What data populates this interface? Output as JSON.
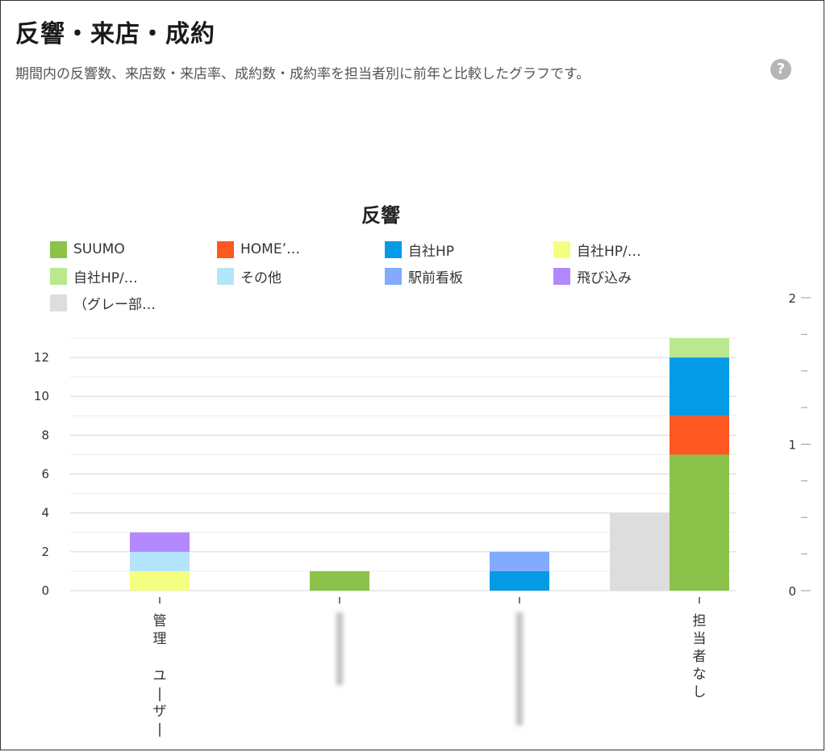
{
  "header": {
    "title": "反響・来店・成約",
    "description": "期間内の反響数、来店数・来店率、成約数・成約率を担当者別に前年と比較したグラフです。",
    "help_icon": "question-circle-icon"
  },
  "chart_data": {
    "type": "bar",
    "stacked": true,
    "title": "反響",
    "categories": [
      "管理　ユーザー",
      "",
      "",
      "担当者なし"
    ],
    "categories_blurred": [
      false,
      true,
      true,
      false
    ],
    "series": [
      {
        "name": "SUUMO",
        "color": "#8bc34a",
        "values": [
          0,
          1,
          0,
          7
        ]
      },
      {
        "name": "HOME’…",
        "color": "#ff5722",
        "values": [
          0,
          0,
          0,
          2
        ]
      },
      {
        "name": "自社HP",
        "color": "#039be5",
        "values": [
          0,
          0,
          1,
          3
        ]
      },
      {
        "name": "自社HP/…",
        "color": "#f4ff81",
        "values": [
          1,
          0,
          0,
          0
        ]
      },
      {
        "name": "自社HP/…",
        "color": "#b9e88f",
        "values": [
          0,
          0,
          0,
          1
        ]
      },
      {
        "name": "その他",
        "color": "#b3e5fc",
        "values": [
          1,
          0,
          0,
          0
        ]
      },
      {
        "name": "駅前看板",
        "color": "#82aaff",
        "values": [
          0,
          0,
          1,
          0
        ]
      },
      {
        "name": "飛び込み",
        "color": "#b388ff",
        "values": [
          1,
          0,
          0,
          0
        ]
      },
      {
        "name": "（グレー部…",
        "color": "#dddddd",
        "values": [
          0,
          0,
          0,
          4
        ],
        "offset_left": true
      }
    ],
    "yticks": [
      0,
      2,
      4,
      6,
      8,
      10,
      12
    ],
    "ylim": [
      0,
      13
    ],
    "y2ticks": [
      0,
      1,
      2
    ],
    "y2lim": [
      0,
      2
    ],
    "grid": true,
    "legend": "top"
  }
}
